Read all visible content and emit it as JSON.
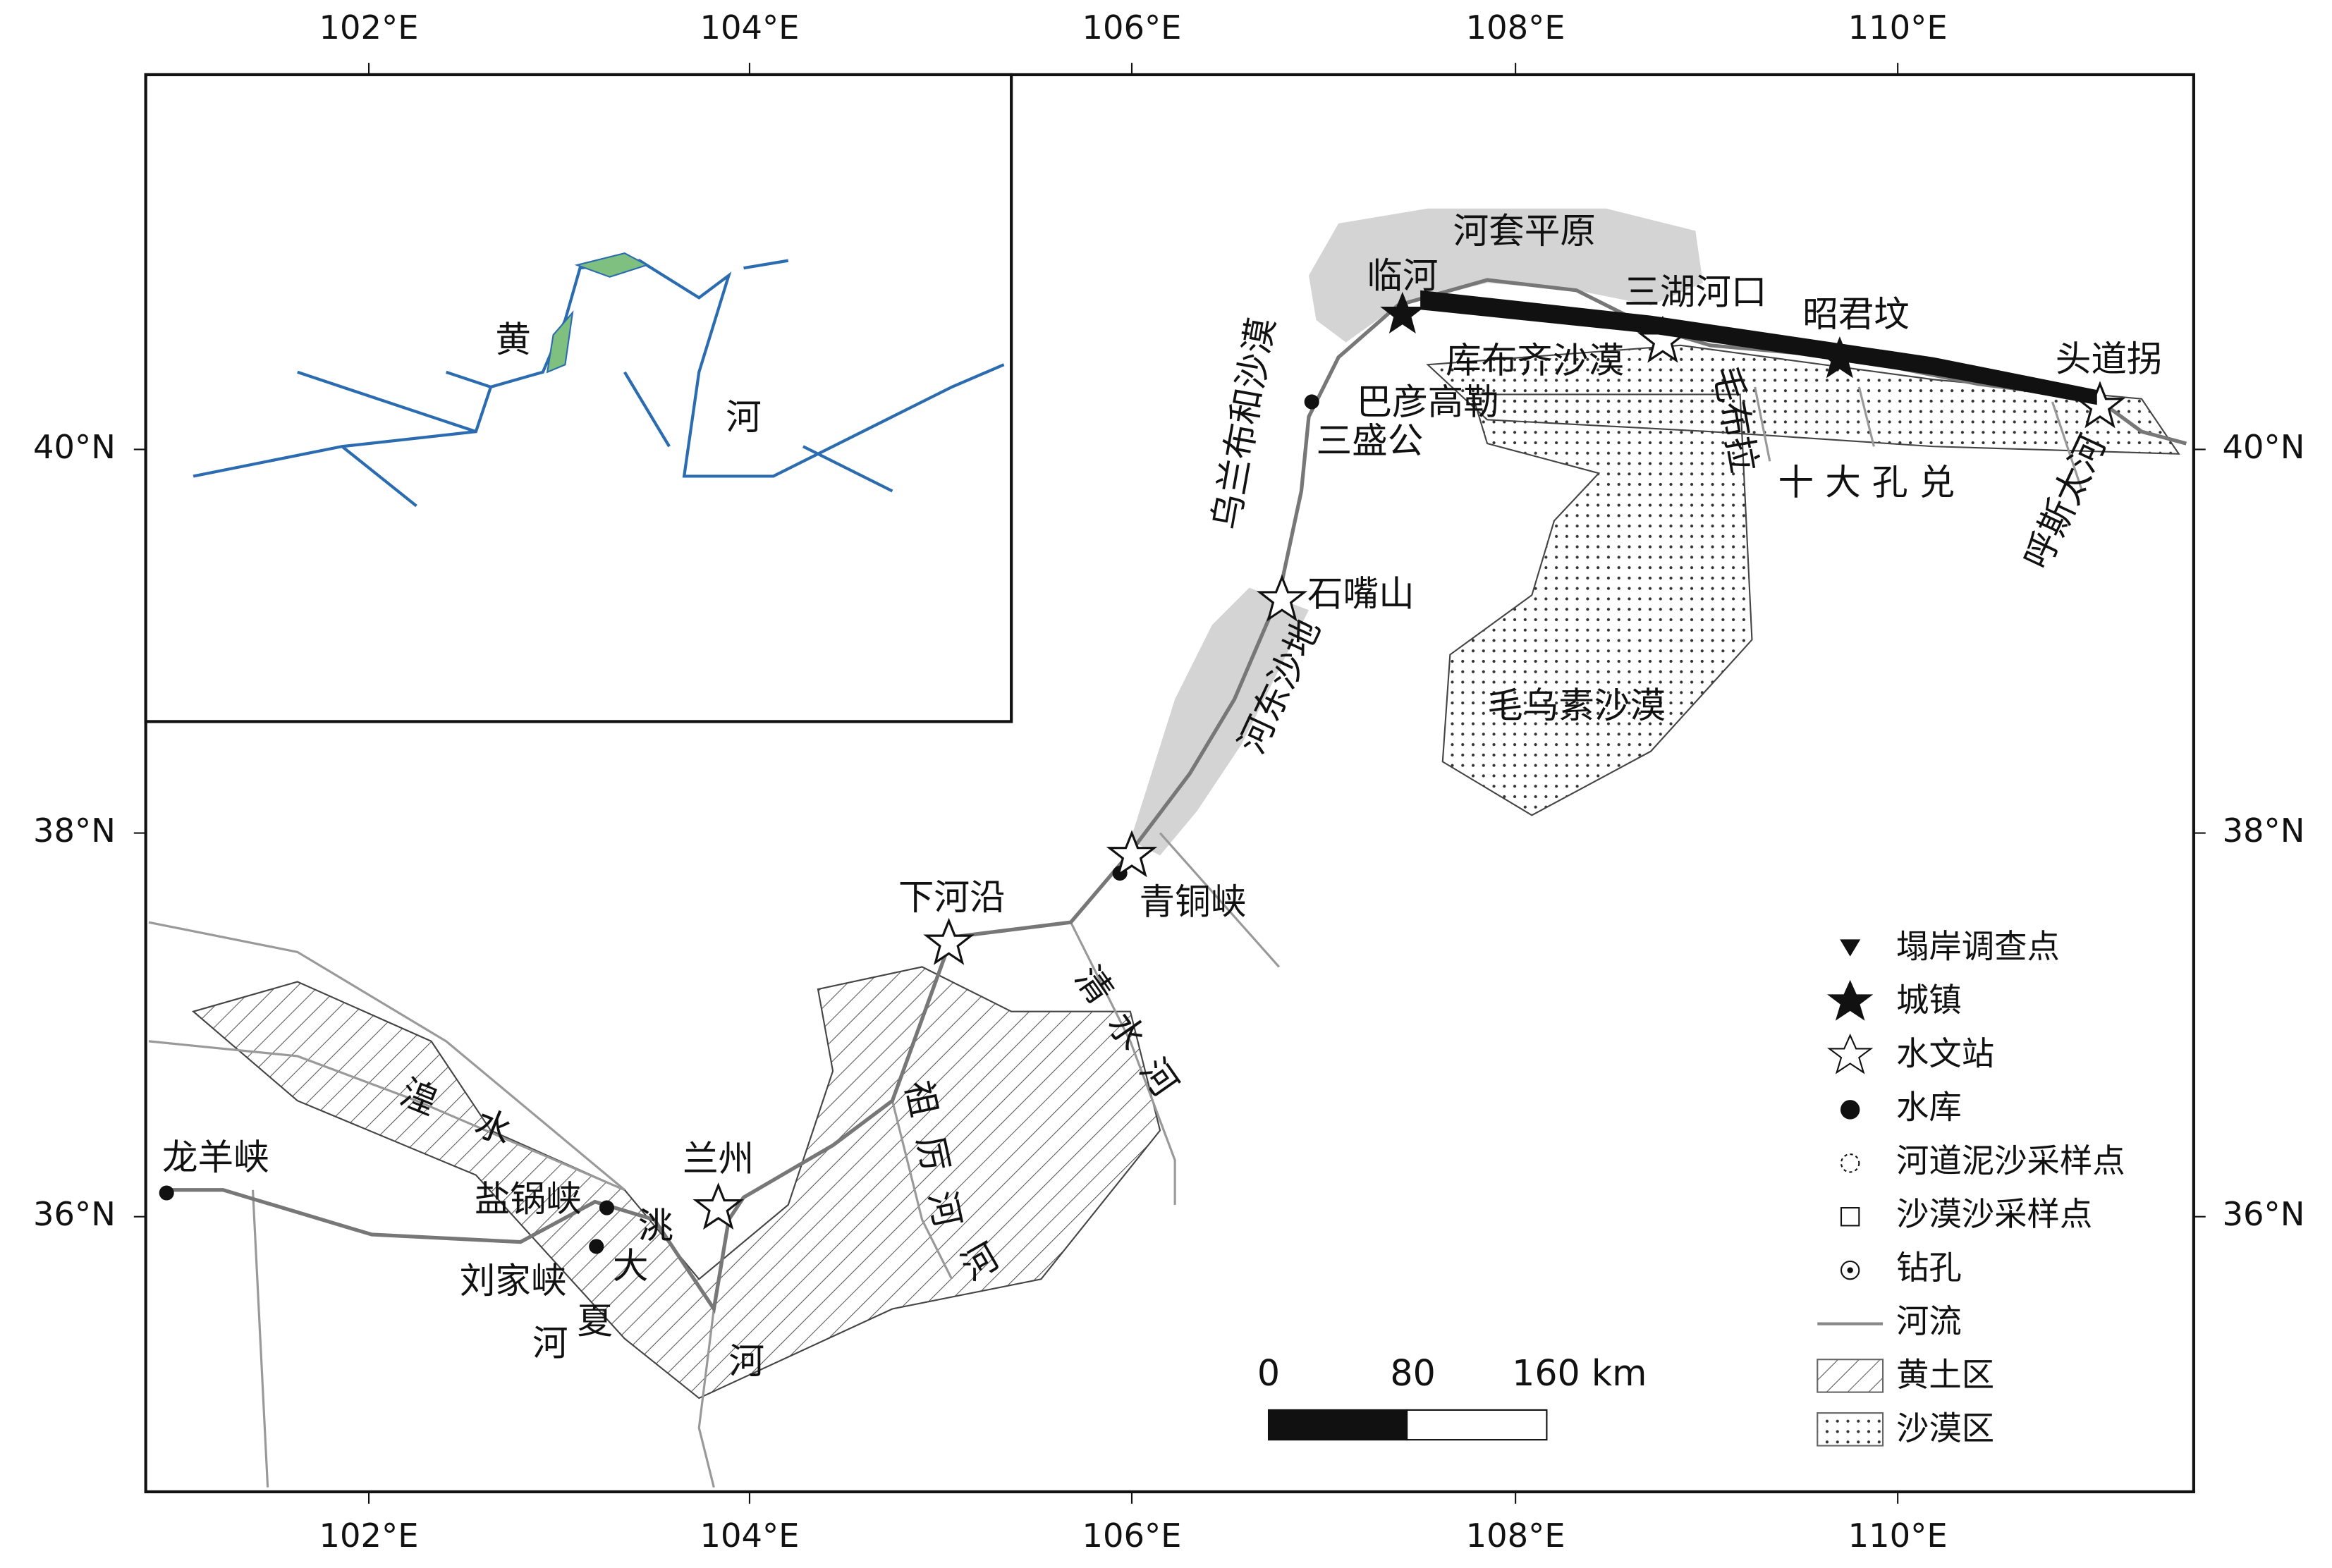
{
  "axes": {
    "top": [
      "102°E",
      "104°E",
      "106°E",
      "108°E",
      "110°E"
    ],
    "bottom": [
      "102°E",
      "104°E",
      "106°E",
      "108°E",
      "110°E"
    ],
    "left": [
      "40°N",
      "38°N",
      "36°N"
    ],
    "right": [
      "40°N",
      "38°N",
      "36°N"
    ]
  },
  "inset": {
    "labels": [
      "黄",
      "河"
    ]
  },
  "places": [
    "河套平原",
    "临河",
    "三湖河口",
    "昭君坟",
    "头道拐",
    "库布齐沙漠",
    "巴彦高勒",
    "三盛公",
    "乌兰布和沙漠",
    "毛布拉",
    "十 大 孔 兑",
    "呼斯太河",
    "石嘴山",
    "河东沙地",
    "毛乌素沙漠",
    "青铜峡",
    "下河沿",
    "清水河",
    "湟水",
    "兰州",
    "祖厉河",
    "龙羊峡",
    "盐锅峡",
    "洮",
    "大",
    "刘家峡",
    "夏",
    "河",
    "河",
    "河"
  ],
  "legend": [
    "塌岸调查点",
    "城镇",
    "水文站",
    "水库",
    "河道泥沙采样点",
    "沙漠沙采样点",
    "钻孔",
    "河流",
    "黄土区",
    "沙漠区"
  ],
  "scale_bar": {
    "labels": [
      "0",
      "80",
      "160 km"
    ]
  }
}
